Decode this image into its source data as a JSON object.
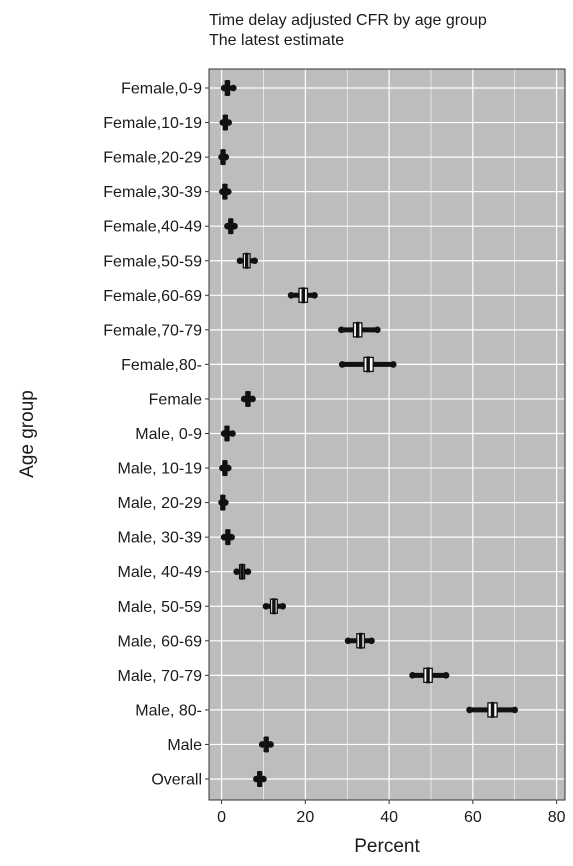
{
  "chart_data": {
    "type": "boxplot",
    "title": "Time delay adjusted CFR by age group",
    "subtitle": "The latest estimate",
    "xlabel": "Percent",
    "ylabel": "Age group",
    "xlim": [
      -3,
      82
    ],
    "xticks": [
      0,
      20,
      40,
      60,
      80
    ],
    "grid": true,
    "orientation": "horizontal",
    "colors": {
      "panel": "#bdbdbd",
      "grid": "#ffffff",
      "ink": "#111111",
      "axis": "#333333"
    },
    "categories": [
      "Female,0-9",
      "Female,10-19",
      "Female,20-29",
      "Female,30-39",
      "Female,40-49",
      "Female,50-59",
      "Female,60-69",
      "Female,70-79",
      "Female,80-",
      "Female",
      "Male, 0-9",
      "Male, 10-19",
      "Male, 20-29",
      "Male, 30-39",
      "Male, 40-49",
      "Male, 50-59",
      "Male, 60-69",
      "Male, 70-79",
      "Male, 80-",
      "Male",
      "Overall"
    ],
    "boxes": [
      {
        "min": 0.6,
        "q1": 0.9,
        "median": 1.4,
        "q3": 1.9,
        "max": 2.8
      },
      {
        "min": 0.3,
        "q1": 0.6,
        "median": 0.9,
        "q3": 1.2,
        "max": 1.7
      },
      {
        "min": 0.0,
        "q1": 0.1,
        "median": 0.4,
        "q3": 0.6,
        "max": 1.0
      },
      {
        "min": 0.2,
        "q1": 0.5,
        "median": 0.8,
        "q3": 1.1,
        "max": 1.6
      },
      {
        "min": 1.4,
        "q1": 1.8,
        "median": 2.2,
        "q3": 2.6,
        "max": 3.1
      },
      {
        "min": 4.4,
        "q1": 5.2,
        "median": 6.0,
        "q3": 6.8,
        "max": 7.9
      },
      {
        "min": 16.6,
        "q1": 18.5,
        "median": 19.5,
        "q3": 20.5,
        "max": 22.2
      },
      {
        "min": 28.6,
        "q1": 31.5,
        "median": 32.5,
        "q3": 33.5,
        "max": 37.2
      },
      {
        "min": 28.8,
        "q1": 34.0,
        "median": 35.0,
        "q3": 36.2,
        "max": 41.0
      },
      {
        "min": 5.4,
        "q1": 5.8,
        "median": 6.3,
        "q3": 6.8,
        "max": 7.4
      },
      {
        "min": 0.6,
        "q1": 0.9,
        "median": 1.3,
        "q3": 1.7,
        "max": 2.6
      },
      {
        "min": 0.2,
        "q1": 0.5,
        "median": 0.8,
        "q3": 1.1,
        "max": 1.6
      },
      {
        "min": 0.0,
        "q1": 0.1,
        "median": 0.3,
        "q3": 0.5,
        "max": 0.9
      },
      {
        "min": 0.6,
        "q1": 1.1,
        "median": 1.5,
        "q3": 1.9,
        "max": 2.4
      },
      {
        "min": 3.6,
        "q1": 4.3,
        "median": 4.9,
        "q3": 5.5,
        "max": 6.3
      },
      {
        "min": 10.6,
        "q1": 11.7,
        "median": 12.5,
        "q3": 13.3,
        "max": 14.6
      },
      {
        "min": 30.2,
        "q1": 32.3,
        "median": 33.2,
        "q3": 34.1,
        "max": 35.8
      },
      {
        "min": 45.6,
        "q1": 48.3,
        "median": 49.3,
        "q3": 50.3,
        "max": 53.6
      },
      {
        "min": 59.2,
        "q1": 63.6,
        "median": 64.7,
        "q3": 65.8,
        "max": 70.0
      },
      {
        "min": 9.7,
        "q1": 10.2,
        "median": 10.7,
        "q3": 11.1,
        "max": 11.7
      },
      {
        "min": 8.3,
        "q1": 8.7,
        "median": 9.1,
        "q3": 9.5,
        "max": 10.0
      }
    ]
  }
}
